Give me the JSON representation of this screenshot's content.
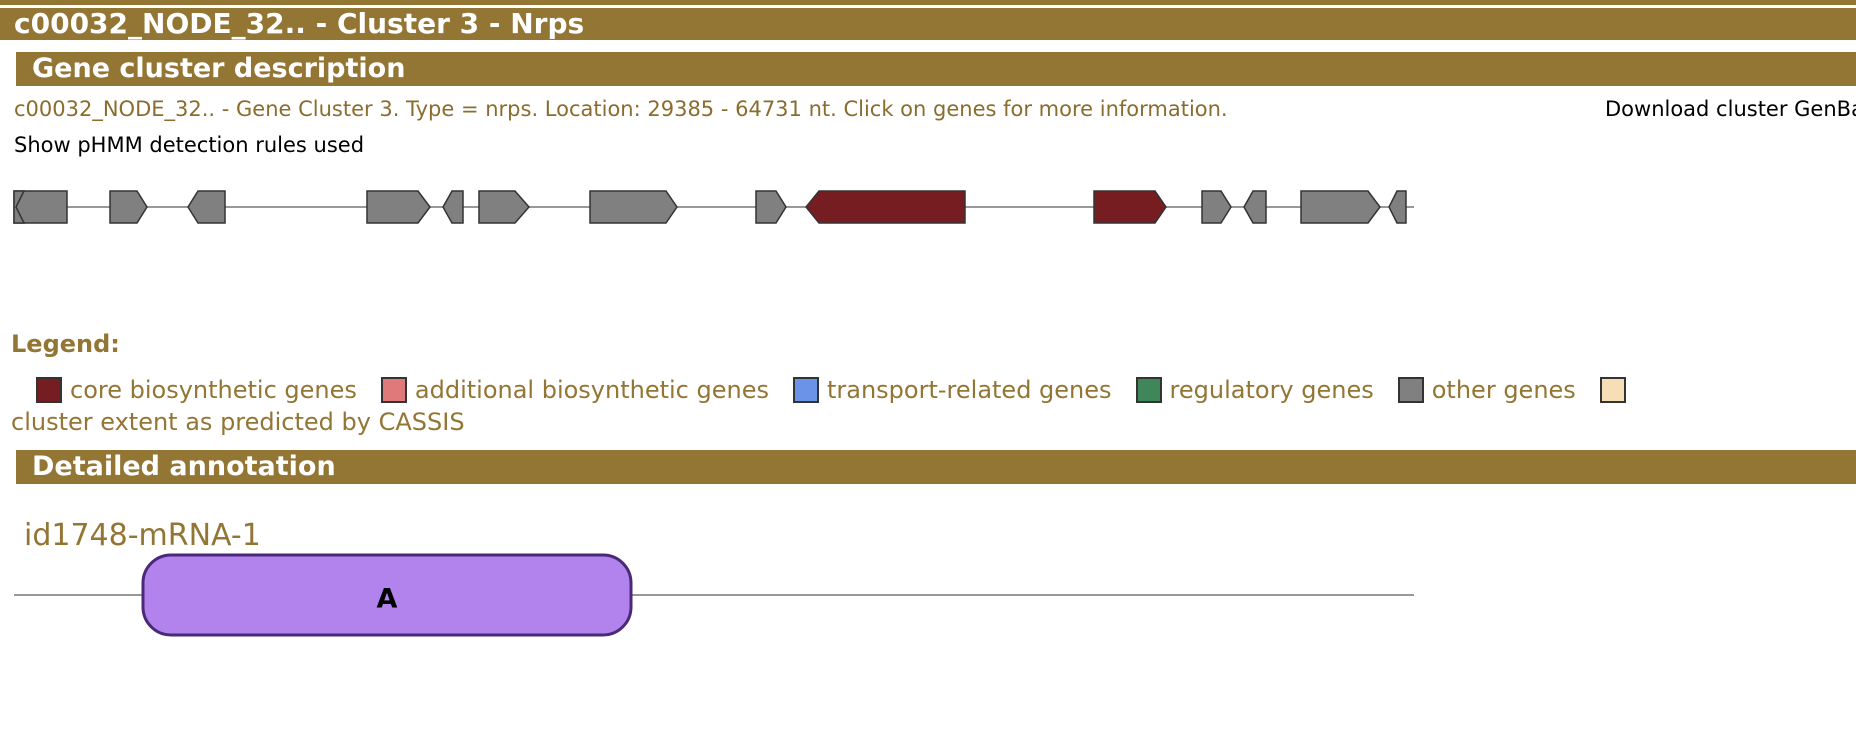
{
  "header": {
    "title": "c00032_NODE_32.. - Cluster 3 - Nrps"
  },
  "description_section": {
    "title": "Gene cluster description",
    "text": "c00032_NODE_32.. - Gene Cluster 3. Type = nrps. Location: 29385 - 64731 nt. Click on genes for more information.",
    "download_label": "Download cluster GenBank file",
    "phmm_link": "Show pHMM detection rules used"
  },
  "colors": {
    "accent": "#937534",
    "core": "#761d22",
    "additional": "#e07a7a",
    "transport": "#6b93e8",
    "regulatory": "#3f865a",
    "other": "#808080",
    "cassis": "#f6dfb6",
    "domain_a": "#b283ec"
  },
  "legend": {
    "title": "Legend:",
    "items": [
      {
        "label": "core biosynthetic genes",
        "color": "#761d22"
      },
      {
        "label": "additional biosynthetic genes",
        "color": "#e07a7a"
      },
      {
        "label": "transport-related genes",
        "color": "#6b93e8"
      },
      {
        "label": "regulatory genes",
        "color": "#3f865a"
      },
      {
        "label": "other genes",
        "color": "#808080"
      }
    ],
    "cassis": {
      "label": "cluster extent as predicted by CASSIS",
      "color": "#f6dfb6"
    }
  },
  "detailed_section": {
    "title": "Detailed annotation",
    "gene_name": "id1748-mRNA-1",
    "domain_label": "A"
  }
}
